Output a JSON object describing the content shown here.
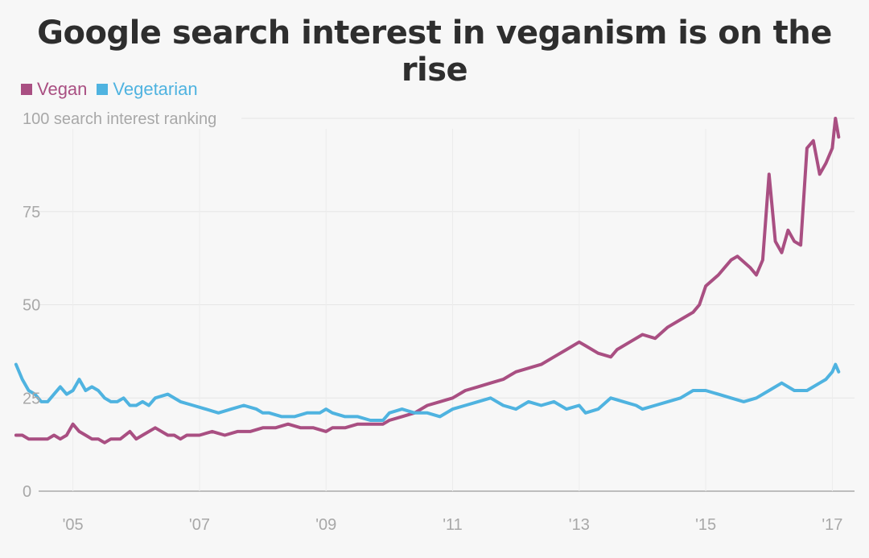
{
  "title": "Google search interest in veganism is on the rise",
  "chart_data": {
    "type": "line",
    "title": "Google search interest in veganism is on the rise",
    "ylabel": "100 search interest ranking",
    "xlabel": "",
    "ylim": [
      0,
      100
    ],
    "xlim": [
      2004.0,
      2017.3
    ],
    "y_ticks": [
      0,
      25,
      50,
      75
    ],
    "y_tick_labels": [
      "0",
      "25",
      "50",
      "75"
    ],
    "x_ticks": [
      2005,
      2007,
      2009,
      2011,
      2013,
      2015,
      2017
    ],
    "x_tick_labels": [
      "'05",
      "'07",
      "'09",
      "'11",
      "'13",
      "'15",
      "'17"
    ],
    "grid": true,
    "legend": "top-left",
    "series": [
      {
        "name": "Vegan",
        "color": "#a94f82",
        "x": [
          2004.1,
          2004.2,
          2004.3,
          2004.5,
          2004.6,
          2004.7,
          2004.8,
          2004.9,
          2005.0,
          2005.1,
          2005.2,
          2005.3,
          2005.4,
          2005.5,
          2005.6,
          2005.75,
          2005.9,
          2006.0,
          2006.1,
          2006.3,
          2006.5,
          2006.6,
          2006.7,
          2006.8,
          2007.0,
          2007.2,
          2007.4,
          2007.6,
          2007.8,
          2008.0,
          2008.2,
          2008.4,
          2008.6,
          2008.8,
          2009.0,
          2009.1,
          2009.3,
          2009.5,
          2009.7,
          2009.9,
          2010.0,
          2010.2,
          2010.4,
          2010.6,
          2010.8,
          2011.0,
          2011.2,
          2011.4,
          2011.6,
          2011.8,
          2012.0,
          2012.2,
          2012.4,
          2012.6,
          2012.8,
          2013.0,
          2013.1,
          2013.3,
          2013.5,
          2013.6,
          2013.8,
          2014.0,
          2014.2,
          2014.4,
          2014.6,
          2014.8,
          2014.9,
          2015.0,
          2015.2,
          2015.3,
          2015.4,
          2015.5,
          2015.7,
          2015.8,
          2015.9,
          2016.0,
          2016.1,
          2016.2,
          2016.3,
          2016.4,
          2016.5,
          2016.6,
          2016.7,
          2016.8,
          2016.9,
          2017.0,
          2017.05,
          2017.1
        ],
        "values": [
          15,
          15,
          14,
          14,
          14,
          15,
          14,
          15,
          18,
          16,
          15,
          14,
          14,
          13,
          14,
          14,
          16,
          14,
          15,
          17,
          15,
          15,
          14,
          15,
          15,
          16,
          15,
          16,
          16,
          17,
          17,
          18,
          17,
          17,
          16,
          17,
          17,
          18,
          18,
          18,
          19,
          20,
          21,
          23,
          24,
          25,
          27,
          28,
          29,
          30,
          32,
          33,
          34,
          36,
          38,
          40,
          39,
          37,
          36,
          38,
          40,
          42,
          41,
          44,
          46,
          48,
          50,
          55,
          58,
          60,
          62,
          63,
          60,
          58,
          62,
          85,
          67,
          64,
          70,
          67,
          66,
          92,
          94,
          85,
          88,
          92,
          100,
          95
        ]
      },
      {
        "name": "Vegetarian",
        "color": "#4fb3e0",
        "x": [
          2004.1,
          2004.2,
          2004.3,
          2004.4,
          2004.5,
          2004.6,
          2004.7,
          2004.8,
          2004.9,
          2005.0,
          2005.1,
          2005.2,
          2005.3,
          2005.4,
          2005.5,
          2005.6,
          2005.7,
          2005.8,
          2005.9,
          2006.0,
          2006.1,
          2006.2,
          2006.3,
          2006.5,
          2006.7,
          2006.9,
          2007.1,
          2007.3,
          2007.5,
          2007.7,
          2007.9,
          2008.0,
          2008.1,
          2008.3,
          2008.5,
          2008.7,
          2008.9,
          2009.0,
          2009.1,
          2009.3,
          2009.5,
          2009.7,
          2009.9,
          2010.0,
          2010.2,
          2010.4,
          2010.6,
          2010.8,
          2011.0,
          2011.2,
          2011.4,
          2011.6,
          2011.8,
          2012.0,
          2012.2,
          2012.4,
          2012.6,
          2012.8,
          2013.0,
          2013.1,
          2013.3,
          2013.5,
          2013.7,
          2013.9,
          2014.0,
          2014.2,
          2014.4,
          2014.6,
          2014.8,
          2015.0,
          2015.2,
          2015.4,
          2015.6,
          2015.8,
          2016.0,
          2016.2,
          2016.4,
          2016.6,
          2016.8,
          2016.9,
          2017.0,
          2017.05,
          2017.1
        ],
        "values": [
          34,
          30,
          27,
          26,
          24,
          24,
          26,
          28,
          26,
          27,
          30,
          27,
          28,
          27,
          25,
          24,
          24,
          25,
          23,
          23,
          24,
          23,
          25,
          26,
          24,
          23,
          22,
          21,
          22,
          23,
          22,
          21,
          21,
          20,
          20,
          21,
          21,
          22,
          21,
          20,
          20,
          19,
          19,
          21,
          22,
          21,
          21,
          20,
          22,
          23,
          24,
          25,
          23,
          22,
          24,
          23,
          24,
          22,
          23,
          21,
          22,
          25,
          24,
          23,
          22,
          23,
          24,
          25,
          27,
          27,
          26,
          25,
          24,
          25,
          27,
          29,
          27,
          27,
          29,
          30,
          32,
          34,
          32
        ]
      }
    ]
  }
}
